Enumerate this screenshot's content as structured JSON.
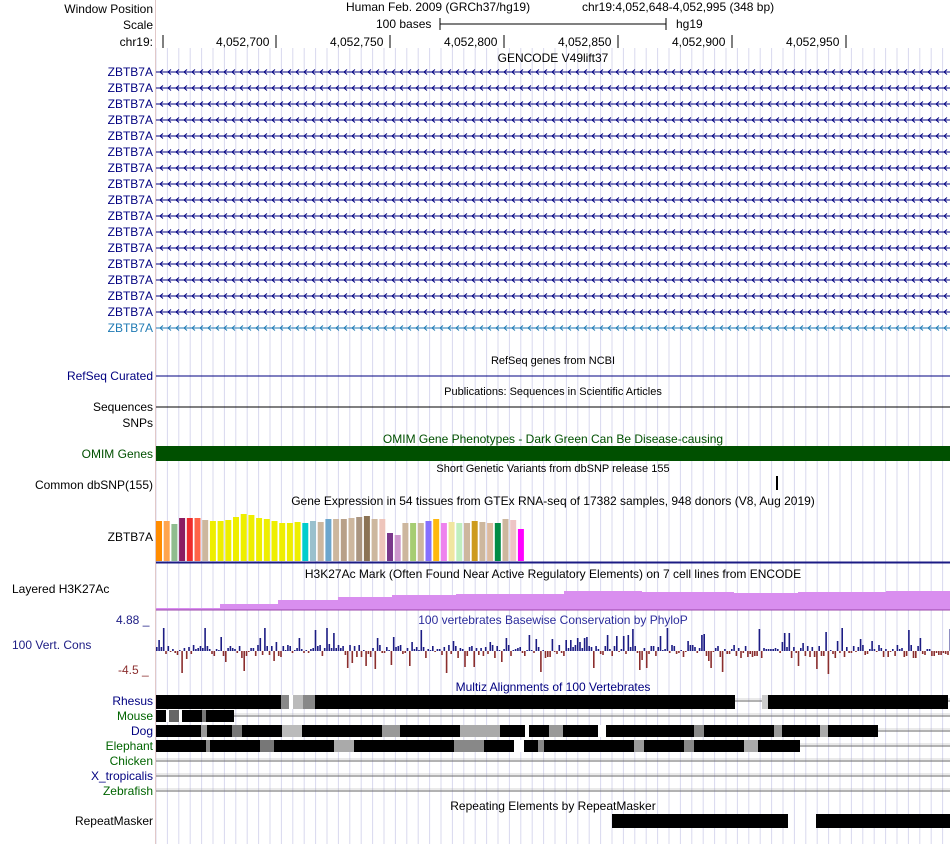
{
  "header": {
    "window_position_label": "Window Position",
    "assembly": "Human Feb. 2009 (GRCh37/hg19)",
    "position": "chr19:4,052,648-4,052,995 (348 bp)",
    "scale_label": "Scale",
    "scale_text": "100 bases",
    "db": "hg19",
    "chrom_label": "chr19:",
    "ruler_ticks": [
      "4,052,700",
      "4,052,750",
      "4,052,800",
      "4,052,850",
      "4,052,900",
      "4,052,950"
    ]
  },
  "gencode": {
    "title": "GENCODE V49lift37",
    "genes": [
      "ZBTB7A",
      "ZBTB7A",
      "ZBTB7A",
      "ZBTB7A",
      "ZBTB7A",
      "ZBTB7A",
      "ZBTB7A",
      "ZBTB7A",
      "ZBTB7A",
      "ZBTB7A",
      "ZBTB7A",
      "ZBTB7A",
      "ZBTB7A",
      "ZBTB7A",
      "ZBTB7A",
      "ZBTB7A",
      "ZBTB7A"
    ]
  },
  "refseq": {
    "title": "RefSeq genes from NCBI",
    "label": "RefSeq Curated"
  },
  "publications": {
    "title": "Publications: Sequences in Scientific Articles",
    "label": "Sequences"
  },
  "snps": {
    "label": "SNPs"
  },
  "omim": {
    "title": "OMIM Gene Phenotypes - Dark Green Can Be Disease-causing",
    "label": "OMIM Genes"
  },
  "dbsnp": {
    "title": "Short Genetic Variants from dbSNP release 155",
    "label": "Common dbSNP(155)"
  },
  "gtex": {
    "title": "Gene Expression in 54 tissues from GTEx RNA-seq of 17382 samples, 948 donors (V8, Aug 2019)",
    "label": "ZBTB7A",
    "bars": [
      {
        "c": "#ff8c00",
        "v": 0.85
      },
      {
        "c": "#ffa54f",
        "v": 0.85
      },
      {
        "c": "#8fbc8f",
        "v": 0.78
      },
      {
        "c": "#8b1c62",
        "v": 0.92
      },
      {
        "c": "#ee2c2c",
        "v": 0.92
      },
      {
        "c": "#ff6347",
        "v": 0.92
      },
      {
        "c": "#cdb79e",
        "v": 0.88
      },
      {
        "c": "#eeee00",
        "v": 0.85
      },
      {
        "c": "#eeee00",
        "v": 0.86
      },
      {
        "c": "#eeee00",
        "v": 0.88
      },
      {
        "c": "#eeee00",
        "v": 0.94
      },
      {
        "c": "#eeee00",
        "v": 1.0
      },
      {
        "c": "#eeee00",
        "v": 0.98
      },
      {
        "c": "#eeee00",
        "v": 0.92
      },
      {
        "c": "#eeee00",
        "v": 0.9
      },
      {
        "c": "#eeee00",
        "v": 0.86
      },
      {
        "c": "#eeee00",
        "v": 0.8
      },
      {
        "c": "#eeee00",
        "v": 0.8
      },
      {
        "c": "#eeee00",
        "v": 0.84
      },
      {
        "c": "#00cdcd",
        "v": 0.8
      },
      {
        "c": "#9ac0cd",
        "v": 0.85
      },
      {
        "c": "#cdb79e",
        "v": 0.82
      },
      {
        "c": "#6ca6cd",
        "v": 0.9
      },
      {
        "c": "#cdb79e",
        "v": 0.9
      },
      {
        "c": "#b8a088",
        "v": 0.9
      },
      {
        "c": "#cdb79e",
        "v": 0.92
      },
      {
        "c": "#aa9580",
        "v": 0.94
      },
      {
        "c": "#8b7355",
        "v": 0.96
      },
      {
        "c": "#cdb79e",
        "v": 0.9
      },
      {
        "c": "#eec5bb",
        "v": 0.9
      },
      {
        "c": "#7a378b",
        "v": 0.6
      },
      {
        "c": "#cd96cd",
        "v": 0.56
      },
      {
        "c": "#cdb79e",
        "v": 0.8
      },
      {
        "c": "#a6cd72",
        "v": 0.8
      },
      {
        "c": "#cdb79e",
        "v": 0.8
      },
      {
        "c": "#8470ff",
        "v": 0.86
      },
      {
        "c": "#ffb90f",
        "v": 0.9
      },
      {
        "c": "#ee82ee",
        "v": 0.8
      },
      {
        "c": "#f0e6a0",
        "v": 0.82
      },
      {
        "c": "#bfefbf",
        "v": 0.8
      },
      {
        "c": "#cdb79e",
        "v": 0.8
      },
      {
        "c": "#cd9b1d",
        "v": 0.85
      },
      {
        "c": "#cdb79e",
        "v": 0.84
      },
      {
        "c": "#ddbba0",
        "v": 0.8
      },
      {
        "c": "#008b45",
        "v": 0.8
      },
      {
        "c": "#cdb79e",
        "v": 0.9
      },
      {
        "c": "#eec5c5",
        "v": 0.88
      },
      {
        "c": "#ff00ff",
        "v": 0.68
      }
    ]
  },
  "h3k27ac": {
    "title": "H3K27Ac Mark (Often Found Near Active Regulatory Elements) on 7 cell lines from ENCODE",
    "label": "Layered H3K27Ac"
  },
  "phylop": {
    "title": "100 vertebrates Basewise Conservation by PhyloP",
    "label": "100 Vert. Cons",
    "ymax": "4.88 _",
    "ymin": "-4.5 _"
  },
  "multiz": {
    "title": "Multiz Alignments of 100 Vertebrates",
    "species": [
      {
        "name": "Rhesus",
        "color": "#000080"
      },
      {
        "name": "Mouse",
        "color": "#006400"
      },
      {
        "name": "Dog",
        "color": "#000080"
      },
      {
        "name": "Elephant",
        "color": "#006400"
      },
      {
        "name": "Chicken",
        "color": "#006400"
      },
      {
        "name": "X_tropicalis",
        "color": "#000080"
      },
      {
        "name": "Zebrafish",
        "color": "#006400"
      }
    ]
  },
  "repeatmasker": {
    "title": "Repeating Elements by RepeatMasker",
    "label": "RepeatMasker"
  },
  "colors": {
    "navy": "#000080",
    "omim": "#005000",
    "gencode_last": "#1f7ab4",
    "h3k27ac": "#d98eef",
    "phylop_pos": "#1c1c84",
    "phylop_neg": "#8b2e2e"
  }
}
